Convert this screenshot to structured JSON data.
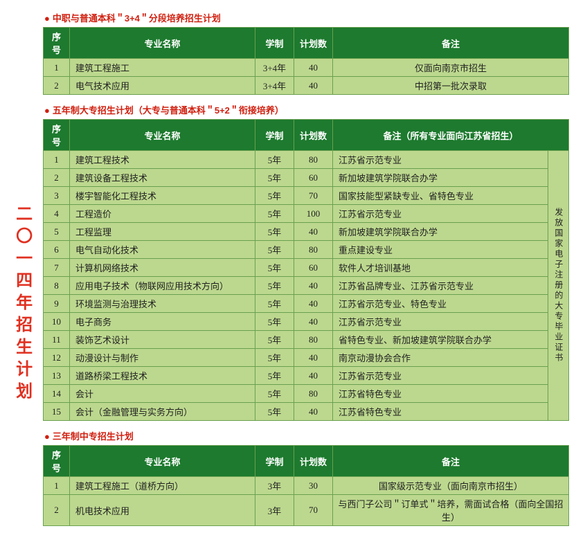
{
  "banner": "二〇一四年招生计划",
  "colors": {
    "header_bg": "#1d7a2e",
    "cell_bg": "#bcd88e",
    "border": "#6aa050",
    "title": "#d02010",
    "banner_text": "#e03020"
  },
  "sections": [
    {
      "title": "中职与普通本科＂3+4＂分段培养招生计划",
      "headers": [
        "序号",
        "专业名称",
        "学制",
        "计划数",
        "备注"
      ],
      "rows": [
        {
          "idx": "1",
          "name": "建筑工程施工",
          "dur": "3+4年",
          "cnt": "40",
          "note": "仅面向南京市招生"
        },
        {
          "idx": "2",
          "name": "电气技术应用",
          "dur": "3+4年",
          "cnt": "40",
          "note": "中招第一批次录取"
        }
      ],
      "note_align": "center"
    },
    {
      "title": "五年制大专招生计划（大专与普通本科＂5+2＂衔接培养）",
      "headers": [
        "序号",
        "专业名称",
        "学制",
        "计划数",
        "备注（所有专业面向江苏省招生）"
      ],
      "vmerge_text": "发放国家电子注册的大专毕业证书",
      "rows": [
        {
          "idx": "1",
          "name": "建筑工程技术",
          "dur": "5年",
          "cnt": "80",
          "note": "江苏省示范专业"
        },
        {
          "idx": "2",
          "name": "建筑设备工程技术",
          "dur": "5年",
          "cnt": "60",
          "note": "新加坡建筑学院联合办学"
        },
        {
          "idx": "3",
          "name": "楼宇智能化工程技术",
          "dur": "5年",
          "cnt": "70",
          "note": "国家技能型紧缺专业、省特色专业"
        },
        {
          "idx": "4",
          "name": "工程造价",
          "dur": "5年",
          "cnt": "100",
          "note": "江苏省示范专业"
        },
        {
          "idx": "5",
          "name": "工程监理",
          "dur": "5年",
          "cnt": "40",
          "note": "新加坡建筑学院联合办学"
        },
        {
          "idx": "6",
          "name": "电气自动化技术",
          "dur": "5年",
          "cnt": "80",
          "note": "重点建设专业"
        },
        {
          "idx": "7",
          "name": "计算机网络技术",
          "dur": "5年",
          "cnt": "60",
          "note": "软件人才培训基地"
        },
        {
          "idx": "8",
          "name": "应用电子技术（物联网应用技术方向）",
          "dur": "5年",
          "cnt": "40",
          "note": "江苏省品牌专业、江苏省示范专业"
        },
        {
          "idx": "9",
          "name": "环境监测与治理技术",
          "dur": "5年",
          "cnt": "40",
          "note": "江苏省示范专业、特色专业"
        },
        {
          "idx": "10",
          "name": "电子商务",
          "dur": "5年",
          "cnt": "40",
          "note": "江苏省示范专业"
        },
        {
          "idx": "11",
          "name": "装饰艺术设计",
          "dur": "5年",
          "cnt": "80",
          "note": "省特色专业、新加坡建筑学院联合办学"
        },
        {
          "idx": "12",
          "name": "动漫设计与制作",
          "dur": "5年",
          "cnt": "40",
          "note": "南京动漫协会合作"
        },
        {
          "idx": "13",
          "name": "道路桥梁工程技术",
          "dur": "5年",
          "cnt": "40",
          "note": "江苏省示范专业"
        },
        {
          "idx": "14",
          "name": "会计",
          "dur": "5年",
          "cnt": "80",
          "note": "江苏省特色专业"
        },
        {
          "idx": "15",
          "name": "会计（金融管理与实务方向）",
          "dur": "5年",
          "cnt": "40",
          "note": "江苏省特色专业"
        }
      ],
      "note_align": "left"
    },
    {
      "title": "三年制中专招生计划",
      "headers": [
        "序号",
        "专业名称",
        "学制",
        "计划数",
        "备注"
      ],
      "rows": [
        {
          "idx": "1",
          "name": "建筑工程施工（道桥方向）",
          "dur": "3年",
          "cnt": "30",
          "note": "国家级示范专业（面向南京市招生）"
        },
        {
          "idx": "2",
          "name": "机电技术应用",
          "dur": "3年",
          "cnt": "70",
          "note": "与西门子公司＂订单式＂培养，需面试合格（面向全国招生）"
        }
      ],
      "note_align": "center"
    }
  ]
}
